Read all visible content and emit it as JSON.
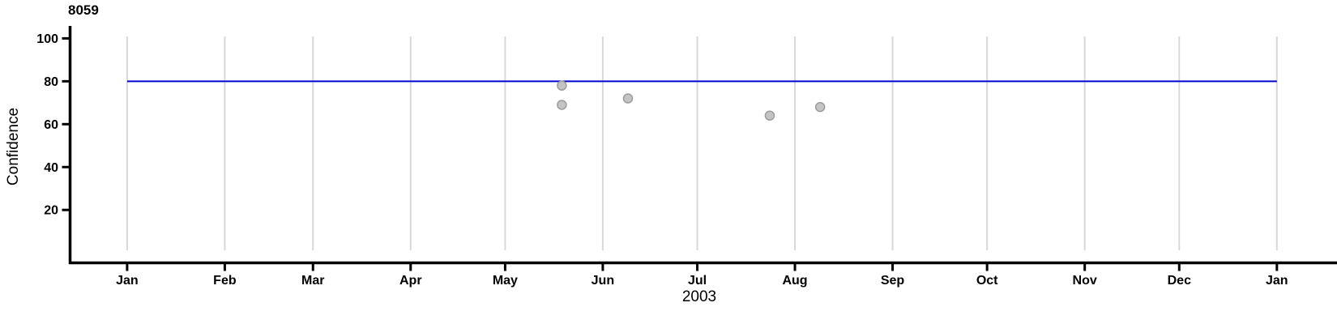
{
  "chart_data": {
    "type": "scatter",
    "title": "8059",
    "xlabel": "2003",
    "ylabel": "Confidence",
    "x_axis": {
      "kind": "date",
      "year_label": "2003",
      "tick_labels": [
        "Jan",
        "Feb",
        "Mar",
        "Apr",
        "May",
        "Jun",
        "Jul",
        "Aug",
        "Sep",
        "Oct",
        "Nov",
        "Dec",
        "Jan"
      ],
      "tick_days": [
        0,
        31,
        59,
        90,
        120,
        151,
        181,
        212,
        243,
        273,
        304,
        334,
        365
      ],
      "range_days": [
        -18,
        384
      ]
    },
    "y_axis": {
      "ticks": [
        20,
        40,
        60,
        80,
        100
      ],
      "range": [
        -5.5,
        105.5
      ]
    },
    "grid": {
      "vertical_months": true,
      "horizontal": false,
      "color": "#D8D8D8"
    },
    "reference_line": {
      "value": 80,
      "from_day": 0,
      "to_day": 365,
      "color": "#0000CD"
    },
    "points": [
      {
        "day": 138,
        "date": "May 18",
        "value": 78
      },
      {
        "day": 138,
        "date": "May 18",
        "value": 69
      },
      {
        "day": 159,
        "date": "Jun 8",
        "value": 72
      },
      {
        "day": 204,
        "date": "Jul 23",
        "value": 64
      },
      {
        "day": 220,
        "date": "Aug 8",
        "value": 68
      }
    ],
    "point_style": {
      "fill": "#C4C4C4",
      "stroke": "#9C9C9C",
      "radius": 5.5
    },
    "axis_color": "#000000"
  }
}
